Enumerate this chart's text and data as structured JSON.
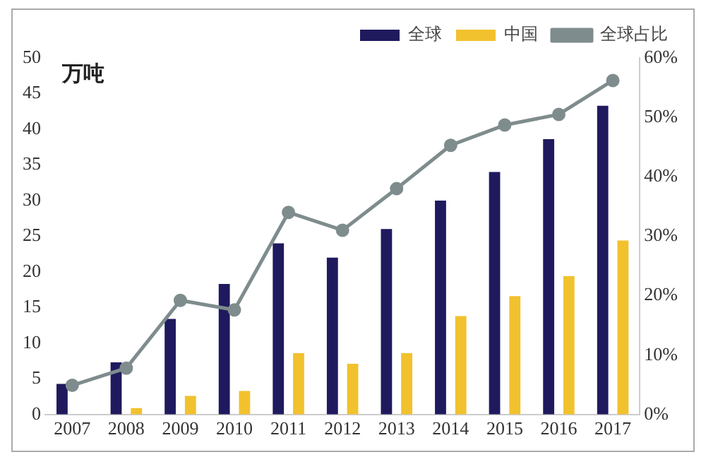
{
  "chart_data": {
    "type": "bar",
    "ylabel": "万吨",
    "categories": [
      "2007",
      "2008",
      "2009",
      "2010",
      "2011",
      "2012",
      "2013",
      "2014",
      "2015",
      "2016",
      "2017"
    ],
    "series": [
      {
        "name": "全球",
        "color": "#1f1a5e",
        "values": [
          4.3,
          7.3,
          13.4,
          18.3,
          24,
          22,
          26,
          30,
          34,
          38.6,
          43.3
        ]
      },
      {
        "name": "中国",
        "color": "#f2c12e",
        "values": [
          null,
          0.9,
          2.6,
          3.3,
          8.6,
          7.1,
          8.6,
          13.8,
          16.6,
          19.4,
          24.4
        ]
      },
      {
        "name": "全球占比",
        "type": "line",
        "axis": "y2",
        "marker": "circle",
        "color": "#7f8c8d",
        "values": [
          4.9,
          7.8,
          19.2,
          17.6,
          34,
          31,
          38,
          45.3,
          48.7,
          50.5,
          56.2
        ]
      }
    ],
    "ylim": [
      0,
      50
    ],
    "yticks": [
      0,
      5,
      10,
      15,
      20,
      25,
      30,
      35,
      40,
      45,
      50
    ],
    "y2lim": [
      0,
      60
    ],
    "y2ticks": [
      {
        "value": 0,
        "label": "0%"
      },
      {
        "value": 10,
        "label": "10%"
      },
      {
        "value": 20,
        "label": "20%"
      },
      {
        "value": 30,
        "label": "30%"
      },
      {
        "value": 40,
        "label": "40%"
      },
      {
        "value": 50,
        "label": "50%"
      },
      {
        "value": 60,
        "label": "60%"
      }
    ],
    "grid": false,
    "legend": "top right"
  }
}
